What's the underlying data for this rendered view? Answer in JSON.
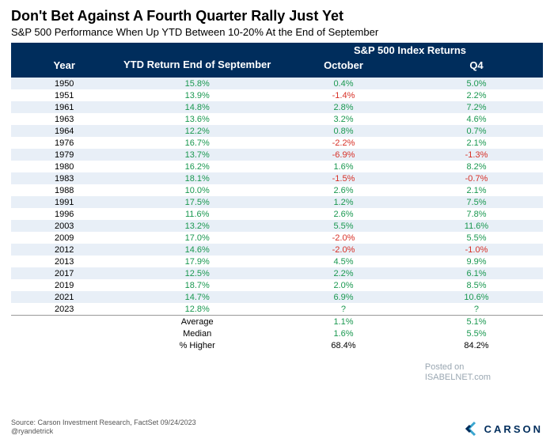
{
  "title": "Don't Bet Against A Fourth Quarter Rally Just Yet",
  "subtitle": "S&P 500 Performance When Up YTD Between 10-20% At the End of September",
  "columns": {
    "super": "S&P 500 Index Returns",
    "year": "Year",
    "ytd": "YTD Return End of September",
    "oct": "October",
    "q4": "Q4"
  },
  "colors": {
    "header_bg": "#002d5c",
    "header_text": "#ffffff",
    "row_even": "#e8eff7",
    "row_odd": "#ffffff",
    "positive": "#1a9850",
    "negative": "#d73027",
    "text": "#000000",
    "watermark": "#9aa7b2"
  },
  "col_widths": [
    "20%",
    "30%",
    "25%",
    "25%"
  ],
  "rows": [
    {
      "year": "1950",
      "ytd": "15.8%",
      "oct": "0.4%",
      "q4": "5.0%",
      "ytd_sign": 1,
      "oct_sign": 1,
      "q4_sign": 1
    },
    {
      "year": "1951",
      "ytd": "13.9%",
      "oct": "-1.4%",
      "q4": "2.2%",
      "ytd_sign": 1,
      "oct_sign": -1,
      "q4_sign": 1
    },
    {
      "year": "1961",
      "ytd": "14.8%",
      "oct": "2.8%",
      "q4": "7.2%",
      "ytd_sign": 1,
      "oct_sign": 1,
      "q4_sign": 1
    },
    {
      "year": "1963",
      "ytd": "13.6%",
      "oct": "3.2%",
      "q4": "4.6%",
      "ytd_sign": 1,
      "oct_sign": 1,
      "q4_sign": 1
    },
    {
      "year": "1964",
      "ytd": "12.2%",
      "oct": "0.8%",
      "q4": "0.7%",
      "ytd_sign": 1,
      "oct_sign": 1,
      "q4_sign": 1
    },
    {
      "year": "1976",
      "ytd": "16.7%",
      "oct": "-2.2%",
      "q4": "2.1%",
      "ytd_sign": 1,
      "oct_sign": -1,
      "q4_sign": 1
    },
    {
      "year": "1979",
      "ytd": "13.7%",
      "oct": "-6.9%",
      "q4": "-1.3%",
      "ytd_sign": 1,
      "oct_sign": -1,
      "q4_sign": -1
    },
    {
      "year": "1980",
      "ytd": "16.2%",
      "oct": "1.6%",
      "q4": "8.2%",
      "ytd_sign": 1,
      "oct_sign": 1,
      "q4_sign": 1
    },
    {
      "year": "1983",
      "ytd": "18.1%",
      "oct": "-1.5%",
      "q4": "-0.7%",
      "ytd_sign": 1,
      "oct_sign": -1,
      "q4_sign": -1
    },
    {
      "year": "1988",
      "ytd": "10.0%",
      "oct": "2.6%",
      "q4": "2.1%",
      "ytd_sign": 1,
      "oct_sign": 1,
      "q4_sign": 1
    },
    {
      "year": "1991",
      "ytd": "17.5%",
      "oct": "1.2%",
      "q4": "7.5%",
      "ytd_sign": 1,
      "oct_sign": 1,
      "q4_sign": 1
    },
    {
      "year": "1996",
      "ytd": "11.6%",
      "oct": "2.6%",
      "q4": "7.8%",
      "ytd_sign": 1,
      "oct_sign": 1,
      "q4_sign": 1
    },
    {
      "year": "2003",
      "ytd": "13.2%",
      "oct": "5.5%",
      "q4": "11.6%",
      "ytd_sign": 1,
      "oct_sign": 1,
      "q4_sign": 1
    },
    {
      "year": "2009",
      "ytd": "17.0%",
      "oct": "-2.0%",
      "q4": "5.5%",
      "ytd_sign": 1,
      "oct_sign": -1,
      "q4_sign": 1
    },
    {
      "year": "2012",
      "ytd": "14.6%",
      "oct": "-2.0%",
      "q4": "-1.0%",
      "ytd_sign": 1,
      "oct_sign": -1,
      "q4_sign": -1
    },
    {
      "year": "2013",
      "ytd": "17.9%",
      "oct": "4.5%",
      "q4": "9.9%",
      "ytd_sign": 1,
      "oct_sign": 1,
      "q4_sign": 1
    },
    {
      "year": "2017",
      "ytd": "12.5%",
      "oct": "2.2%",
      "q4": "6.1%",
      "ytd_sign": 1,
      "oct_sign": 1,
      "q4_sign": 1
    },
    {
      "year": "2019",
      "ytd": "18.7%",
      "oct": "2.0%",
      "q4": "8.5%",
      "ytd_sign": 1,
      "oct_sign": 1,
      "q4_sign": 1
    },
    {
      "year": "2021",
      "ytd": "14.7%",
      "oct": "6.9%",
      "q4": "10.6%",
      "ytd_sign": 1,
      "oct_sign": 1,
      "q4_sign": 1
    },
    {
      "year": "2023",
      "ytd": "12.8%",
      "oct": "?",
      "q4": "?",
      "ytd_sign": 1,
      "oct_sign": 0,
      "q4_sign": 0
    }
  ],
  "summary": [
    {
      "label": "Average",
      "ytd": "",
      "oct": "1.1%",
      "q4": "5.1%",
      "oct_sign": 1,
      "q4_sign": 1
    },
    {
      "label": "Median",
      "ytd": "",
      "oct": "1.6%",
      "q4": "5.5%",
      "oct_sign": 1,
      "q4_sign": 1
    },
    {
      "label": "% Higher",
      "ytd": "",
      "oct": "68.4%",
      "q4": "84.2%",
      "oct_sign": 0,
      "q4_sign": 0
    }
  ],
  "watermark": {
    "line1": "Posted on",
    "line2": "ISABELNET.com"
  },
  "source": {
    "line1": "Source: Carson Investment Research, FactSet 09/24/2023",
    "line2": "@ryandetrick"
  },
  "logo_text": "CARSON"
}
